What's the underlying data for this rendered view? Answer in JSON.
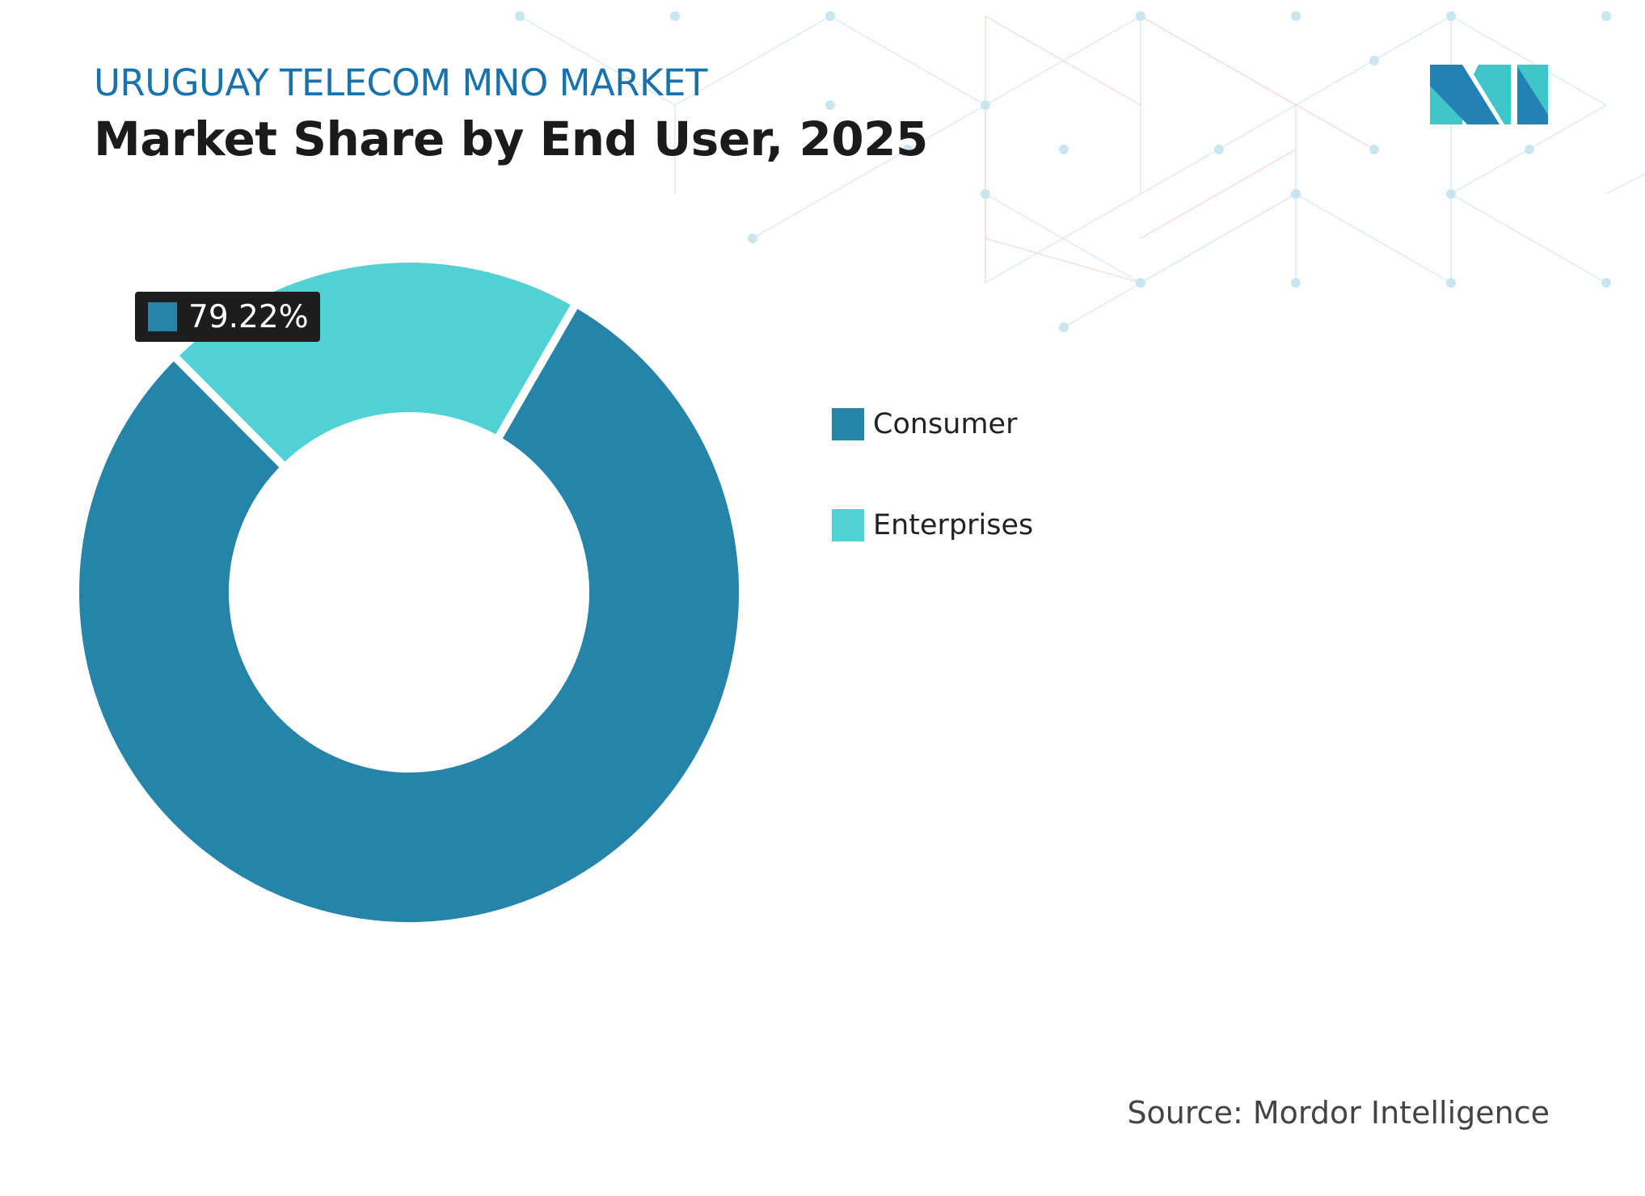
{
  "header": {
    "kicker": "URUGUAY TELECOM MNO MARKET",
    "title": "Market Share by End User, 2025"
  },
  "chart_data": {
    "type": "pie",
    "subtype": "donut",
    "categories": [
      "Consumer",
      "Enterprises"
    ],
    "values": [
      79.22,
      20.78
    ],
    "unit": "%",
    "colors": [
      "#2684a8",
      "#52d1d4"
    ],
    "data_labels": [
      {
        "category": "Consumer",
        "text": "79.22%"
      }
    ],
    "legend": "right"
  },
  "source": "Source: Mordor Intelligence",
  "logo": {
    "brand": "Mordor Intelligence",
    "colors": [
      "#2481b5",
      "#3ec6c8"
    ]
  }
}
